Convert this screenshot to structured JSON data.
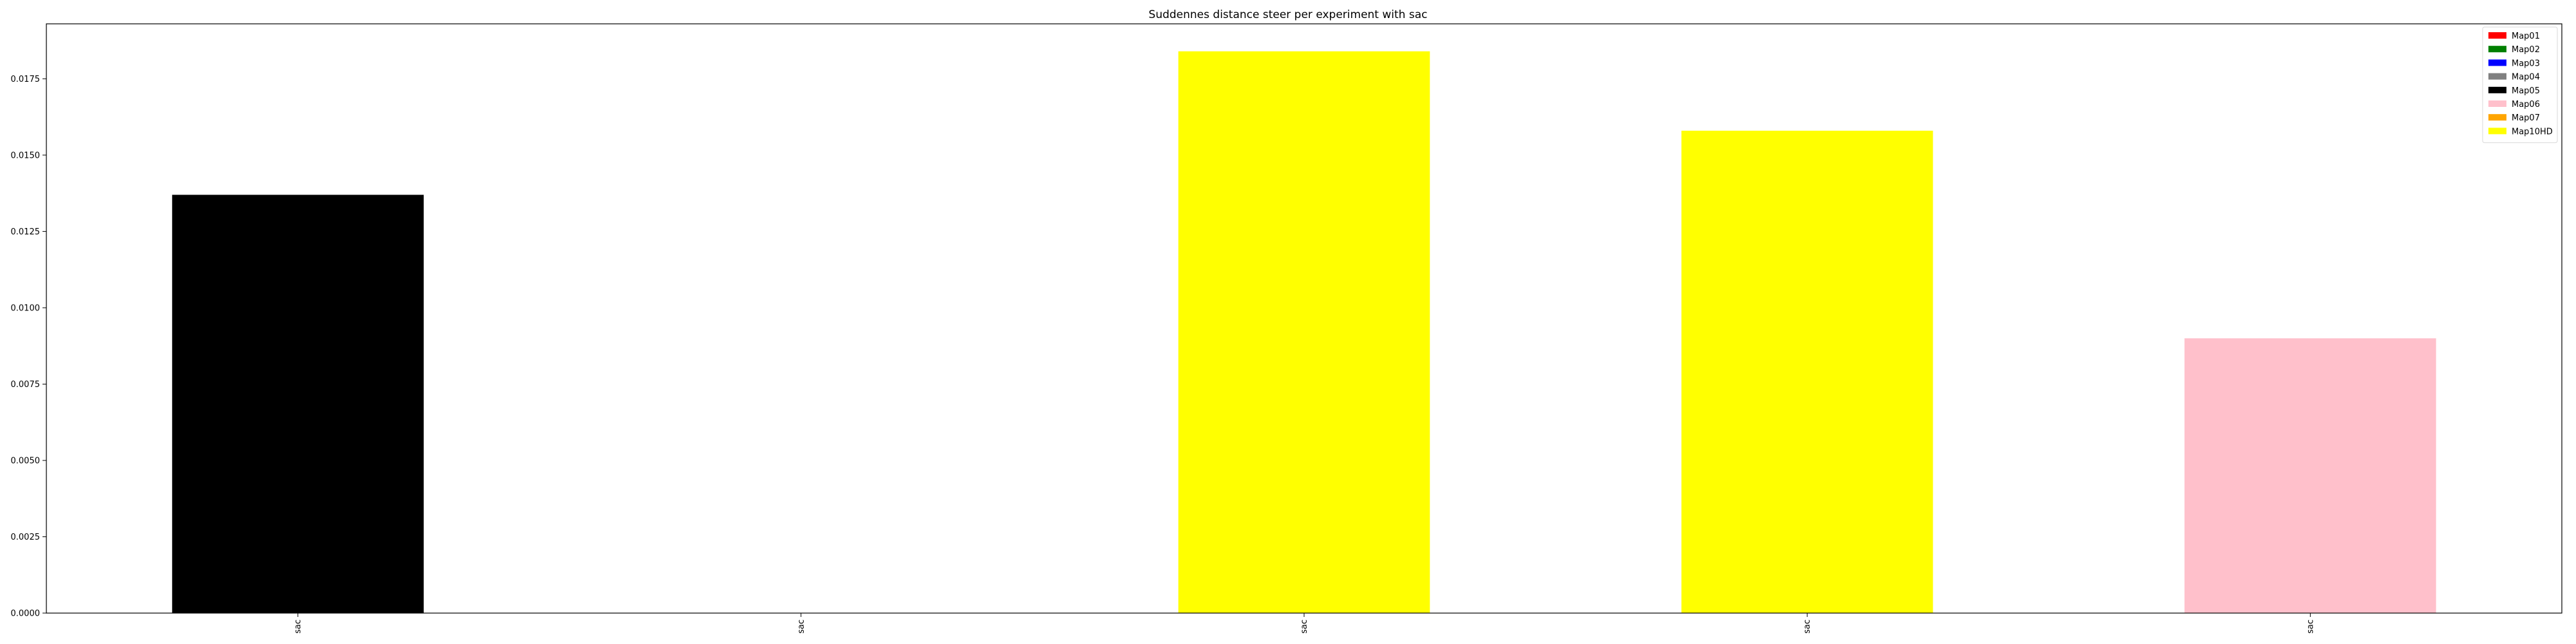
{
  "chart_data": {
    "type": "bar",
    "title": "Suddennes distance steer per experiment with sac",
    "xlabel": "",
    "ylabel": "",
    "categories": [
      "sac",
      "sac",
      "sac",
      "sac",
      "sac"
    ],
    "values": [
      0.0137,
      0.0,
      0.0184,
      0.0158,
      0.009
    ],
    "bar_series": [
      "Map05",
      "Map01",
      "Map10HD",
      "Map10HD",
      "Map06"
    ],
    "ylim": [
      0,
      0.0193
    ],
    "yticks": [
      "0.0000",
      "0.0025",
      "0.0050",
      "0.0075",
      "0.0100",
      "0.0125",
      "0.0150",
      "0.0175"
    ],
    "ytick_values": [
      0,
      0.0025,
      0.005,
      0.0075,
      0.01,
      0.0125,
      0.015,
      0.0175
    ],
    "grid": false,
    "legend_position": "top-right",
    "legend": [
      {
        "name": "Map01",
        "color": "#ff0000"
      },
      {
        "name": "Map02",
        "color": "#008000"
      },
      {
        "name": "Map03",
        "color": "#0000ff"
      },
      {
        "name": "Map04",
        "color": "#808080"
      },
      {
        "name": "Map05",
        "color": "#000000"
      },
      {
        "name": "Map06",
        "color": "#ffc0cb"
      },
      {
        "name": "Map07",
        "color": "#ffa500"
      },
      {
        "name": "Map10HD",
        "color": "#ffff00"
      }
    ]
  }
}
